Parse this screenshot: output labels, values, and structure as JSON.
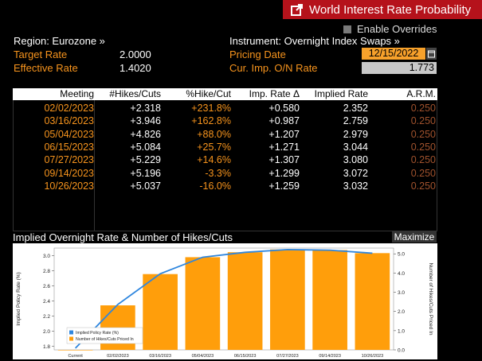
{
  "window": {
    "title": "World Interest Rate Probability"
  },
  "overrides": {
    "label": "Enable Overrides"
  },
  "region": {
    "label": "Region: Eurozone »"
  },
  "instrument": {
    "label": "Instrument: Overnight Index Swaps »"
  },
  "target_rate": {
    "label": "Target Rate",
    "value": "2.0000"
  },
  "effective_rate": {
    "label": "Effective Rate",
    "value": "1.4020"
  },
  "pricing_date": {
    "label": "Pricing Date",
    "value": "12/15/2022"
  },
  "cur_imp": {
    "label": "Cur. Imp. O/N Rate",
    "value": "1.773"
  },
  "table": {
    "headers": [
      "Meeting",
      "#Hikes/Cuts",
      "%Hike/Cut",
      "Imp. Rate Δ",
      "Implied Rate",
      "A.R.M."
    ],
    "rows": [
      [
        "02/02/2023",
        "+2.318",
        "+231.8%",
        "+0.580",
        "2.352",
        "0.250"
      ],
      [
        "03/16/2023",
        "+3.946",
        "+162.8%",
        "+0.987",
        "2.759",
        "0.250"
      ],
      [
        "05/04/2023",
        "+4.826",
        "+88.0%",
        "+1.207",
        "2.979",
        "0.250"
      ],
      [
        "06/15/2023",
        "+5.084",
        "+25.7%",
        "+1.271",
        "3.044",
        "0.250"
      ],
      [
        "07/27/2023",
        "+5.229",
        "+14.6%",
        "+1.307",
        "3.080",
        "0.250"
      ],
      [
        "09/14/2023",
        "+5.196",
        "-3.3%",
        "+1.299",
        "3.072",
        "0.250"
      ],
      [
        "10/26/2023",
        "+5.037",
        "-16.0%",
        "+1.259",
        "3.032",
        "0.250"
      ]
    ]
  },
  "chart": {
    "header_title": "Implied Overnight Rate & Number of Hikes/Cuts",
    "maximize_label": "Maximize"
  },
  "chart_data": {
    "type": "bar",
    "categories": [
      "Current",
      "02/02/2023",
      "03/16/2023",
      "05/04/2023",
      "06/15/2023",
      "07/27/2023",
      "09/14/2023",
      "10/26/2023"
    ],
    "series": [
      {
        "name": "Implied Policy Rate (%)",
        "type": "line",
        "axis": "left",
        "values": [
          1.773,
          2.352,
          2.759,
          2.979,
          3.044,
          3.08,
          3.072,
          3.032
        ]
      },
      {
        "name": "Number of Hikes/Cuts Priced In",
        "type": "bar",
        "axis": "right",
        "values": [
          0,
          2.318,
          3.946,
          4.826,
          5.084,
          5.229,
          5.196,
          5.037
        ]
      }
    ],
    "ylabel": "Implied Policy Rate (%)",
    "y2label": "Number of Hikes/Cuts Priced In",
    "ylim": [
      1.75,
      3.1
    ],
    "y2lim": [
      0,
      5.3
    ],
    "yticks": [
      "1.8",
      "2.0",
      "2.2",
      "2.4",
      "2.6",
      "2.8",
      "3.0"
    ],
    "y2ticks": [
      "0.0",
      "1.0",
      "2.0",
      "3.0",
      "4.0",
      "5.0"
    ],
    "legend_position": "bottom-left",
    "colors": {
      "line": "#2e86de",
      "bar": "#ff9e0b"
    }
  }
}
